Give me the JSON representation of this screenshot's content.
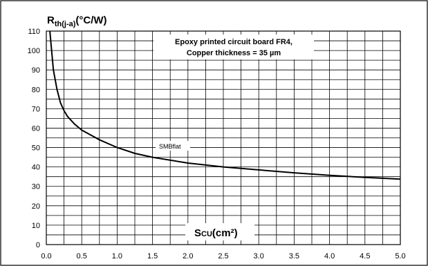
{
  "chart_data": {
    "type": "line",
    "ylabel_main": "R",
    "ylabel_sub": "th(j-a)",
    "ylabel_unit": "(°C/W)",
    "xlabel_main": "S",
    "xlabel_sub": "CU",
    "xlabel_unit": "(cm²)",
    "annotation": [
      "Epoxy printed circuit board FR4,",
      "Copper thickness = 35 µm"
    ],
    "xlim": [
      0,
      5
    ],
    "ylim": [
      0,
      110
    ],
    "x_ticks": [
      "0.0",
      "0.5",
      "1.0",
      "1.5",
      "2.0",
      "2.5",
      "3.0",
      "3.5",
      "4.0",
      "4.5",
      "5.0"
    ],
    "y_ticks": [
      "0",
      "10",
      "20",
      "30",
      "40",
      "50",
      "60",
      "70",
      "80",
      "90",
      "100",
      "110"
    ],
    "grid": true,
    "series": [
      {
        "name": "SMBflat",
        "color": "#000000",
        "x": [
          0.05,
          0.1,
          0.15,
          0.2,
          0.25,
          0.3,
          0.4,
          0.5,
          0.6,
          0.75,
          1.0,
          1.25,
          1.5,
          2.0,
          2.5,
          3.0,
          3.5,
          4.0,
          4.5,
          5.0
        ],
        "y": [
          110,
          90,
          80,
          73,
          69,
          66,
          62,
          59,
          57,
          54,
          50,
          47,
          45,
          42,
          40,
          38.5,
          37,
          35.7,
          34.6,
          33.7
        ]
      }
    ]
  }
}
